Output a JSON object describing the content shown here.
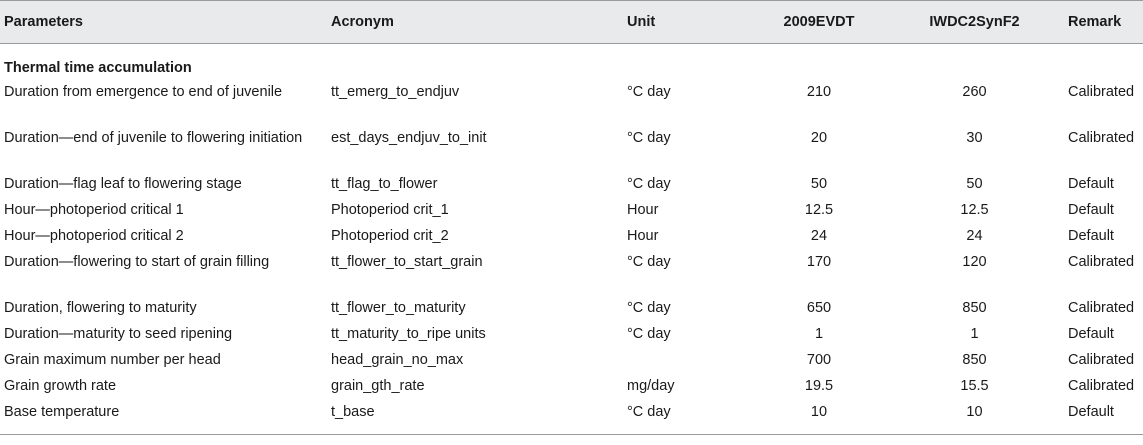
{
  "table": {
    "headers": {
      "parameters": "Parameters",
      "acronym": "Acronym",
      "unit": "Unit",
      "col_2009evdt": "2009EVDT",
      "col_iwdc2synf2": "IWDC2SynF2",
      "remark": "Remark"
    },
    "section_title": "Thermal time accumulation",
    "rows": [
      {
        "parameter": "Duration from emergence to end of juvenile",
        "acronym": "tt_emerg_to_endjuv",
        "unit": "°C day",
        "v2009evdt": "210",
        "viwdc2synf2": "260",
        "remark": "Calibrated"
      },
      {
        "parameter": "Duration—end of juvenile to flowering initiation",
        "acronym": "est_days_endjuv_to_init",
        "unit": "°C day",
        "v2009evdt": "20",
        "viwdc2synf2": "30",
        "remark": "Calibrated"
      },
      {
        "parameter": "Duration—flag leaf to flowering stage",
        "acronym": "tt_flag_to_flower",
        "unit": "°C day",
        "v2009evdt": "50",
        "viwdc2synf2": "50",
        "remark": "Default"
      },
      {
        "parameter": "Hour—photoperiod critical 1",
        "acronym": "Photoperiod crit_1",
        "unit": "Hour",
        "v2009evdt": "12.5",
        "viwdc2synf2": "12.5",
        "remark": "Default"
      },
      {
        "parameter": "Hour—photoperiod critical 2",
        "acronym": "Photoperiod crit_2",
        "unit": "Hour",
        "v2009evdt": "24",
        "viwdc2synf2": "24",
        "remark": "Default"
      },
      {
        "parameter": "Duration—flowering to start of grain filling",
        "acronym": "tt_flower_to_start_grain",
        "unit": "°C day",
        "v2009evdt": "170",
        "viwdc2synf2": "120",
        "remark": "Calibrated"
      },
      {
        "parameter": "Duration, flowering to maturity",
        "acronym": "tt_flower_to_maturity",
        "unit": "°C day",
        "v2009evdt": "650",
        "viwdc2synf2": "850",
        "remark": "Calibrated"
      },
      {
        "parameter": "Duration—maturity to seed ripening",
        "acronym": "tt_maturity_to_ripe units",
        "unit": "°C day",
        "v2009evdt": "1",
        "viwdc2synf2": "1",
        "remark": "Default"
      },
      {
        "parameter": "Grain maximum number per head",
        "acronym": "head_grain_no_max",
        "unit": "",
        "v2009evdt": "700",
        "viwdc2synf2": "850",
        "remark": "Calibrated"
      },
      {
        "parameter": "Grain growth rate",
        "acronym": "grain_gth_rate",
        "unit": "mg/day",
        "v2009evdt": "19.5",
        "viwdc2synf2": "15.5",
        "remark": "Calibrated"
      },
      {
        "parameter": "Base temperature",
        "acronym": "t_base",
        "unit": "°C day",
        "v2009evdt": "10",
        "viwdc2synf2": "10",
        "remark": "Default"
      }
    ]
  },
  "colors": {
    "header_background": "#e8eaec",
    "rule": "#9a9a9a",
    "text": "#1a1a1a"
  }
}
